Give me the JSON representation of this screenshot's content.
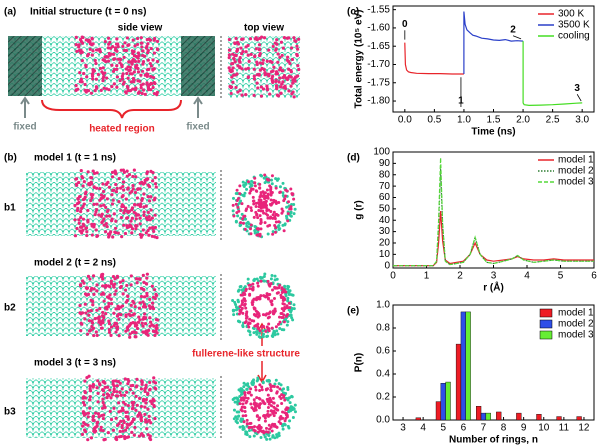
{
  "panels": {
    "a_label": "(a)",
    "a_title": "Initial structure (t = 0 ns)",
    "side_view": "side view",
    "top_view": "top view",
    "fixed_left": "fixed",
    "heated": "heated region",
    "fixed_right": "fixed",
    "b_label": "(b)",
    "model1": "model 1 (t = 1 ns)",
    "b1": "b1",
    "model2": "model 2 (t = 2 ns)",
    "b2": "b2",
    "fullerene": "fullerene-like structure",
    "model3": "model 3 (t = 3 ns)",
    "b3": "b3"
  },
  "chart_data": [
    {
      "type": "line",
      "panel": "(c)",
      "xlabel": "Time (ns)",
      "ylabel": "Total energy (10⁵ eV)",
      "xlim": [
        -0.2,
        3.2
      ],
      "xticks": [
        {
          "value": 0,
          "label": "0.0"
        },
        0.5,
        {
          "value": 1,
          "label": "1.0"
        },
        1.5,
        {
          "value": 2,
          "label": "2.0"
        },
        2.5,
        {
          "value": 3,
          "label": "3.0"
        }
      ],
      "ylim": [
        -1.83,
        -1.54
      ],
      "yticks": [
        -1.55,
        {
          "value": -1.6,
          "label": "-1.60"
        },
        -1.65,
        {
          "value": -1.7,
          "label": "-1.70"
        },
        -1.75,
        {
          "value": -1.8,
          "label": "-1.80"
        }
      ],
      "legend": "upper right",
      "annotations": [
        "0",
        "1",
        "2",
        "3"
      ],
      "series": [
        {
          "name": "300 K",
          "color": "#e8242a",
          "x": [
            0,
            0.01,
            0.03,
            0.06,
            0.1,
            0.2,
            0.4,
            0.6,
            0.8,
            1.0
          ],
          "values": [
            -1.64,
            -1.7,
            -1.715,
            -1.72,
            -1.722,
            -1.724,
            -1.725,
            -1.725,
            -1.726,
            -1.726
          ]
        },
        {
          "name": "3500 K",
          "color": "#2a3fc9",
          "x": [
            1.0,
            1.0,
            1.02,
            1.05,
            1.1,
            1.15,
            1.2,
            1.3,
            1.4,
            1.5,
            1.6,
            1.7,
            1.8,
            1.9,
            2.0
          ],
          "values": [
            -1.726,
            -1.555,
            -1.59,
            -1.605,
            -1.613,
            -1.62,
            -1.622,
            -1.628,
            -1.63,
            -1.633,
            -1.634,
            -1.632,
            -1.636,
            -1.635,
            -1.636
          ]
        },
        {
          "name": "cooling",
          "color": "#44dd22",
          "x": [
            2.0,
            2.0,
            2.02,
            2.1,
            2.3,
            2.5,
            2.7,
            2.9,
            3.0
          ],
          "values": [
            -1.636,
            -1.805,
            -1.81,
            -1.812,
            -1.811,
            -1.81,
            -1.808,
            -1.806,
            -1.805
          ]
        }
      ]
    },
    {
      "type": "line",
      "panel": "(d)",
      "xlabel": "r (Å)",
      "ylabel": "g (r)",
      "xlim": [
        0,
        6
      ],
      "xticks": [
        0,
        1,
        2,
        3,
        4,
        5,
        6
      ],
      "ylim": [
        -2,
        100
      ],
      "yticks": [
        0,
        10,
        20,
        30,
        40,
        50,
        60,
        70,
        80,
        90,
        100
      ],
      "legend": "upper right",
      "series": [
        {
          "name": "model 1",
          "color": "#e8242a",
          "dash": "solid",
          "x": [
            0,
            1.2,
            1.3,
            1.36,
            1.42,
            1.48,
            1.56,
            1.7,
            1.9,
            2.1,
            2.3,
            2.45,
            2.6,
            2.8,
            3.0,
            3.3,
            3.55,
            3.72,
            3.9,
            4.2,
            4.5,
            4.8,
            5.1,
            5.5,
            6.0
          ],
          "values": [
            0,
            0,
            3,
            20,
            48,
            22,
            5,
            2,
            3,
            4,
            10,
            20,
            10,
            5,
            4,
            5,
            6,
            8,
            6,
            5,
            5,
            6,
            5,
            5,
            5
          ]
        },
        {
          "name": "model 2",
          "color": "#2e7d32",
          "dash": "dotted",
          "x": [
            0,
            1.2,
            1.3,
            1.36,
            1.42,
            1.48,
            1.56,
            1.7,
            1.9,
            2.1,
            2.3,
            2.45,
            2.6,
            2.8,
            3.0,
            3.3,
            3.55,
            3.72,
            3.9,
            4.2,
            4.5,
            4.8,
            5.1,
            5.5,
            6.0
          ],
          "values": [
            0,
            0,
            4,
            35,
            85,
            35,
            4,
            1,
            2,
            3,
            10,
            25,
            10,
            3,
            2,
            4,
            6,
            9,
            5,
            3,
            4,
            5,
            4,
            4,
            4
          ]
        },
        {
          "name": "model 3",
          "color": "#55d83a",
          "dash": "dashed",
          "x": [
            0,
            1.2,
            1.3,
            1.36,
            1.42,
            1.48,
            1.56,
            1.7,
            1.9,
            2.1,
            2.3,
            2.45,
            2.6,
            2.8,
            3.0,
            3.3,
            3.55,
            3.72,
            3.9,
            4.2,
            4.5,
            4.8,
            5.1,
            5.5,
            6.0
          ],
          "values": [
            0,
            0,
            4,
            40,
            95,
            38,
            4,
            1,
            2,
            3,
            10,
            25,
            10,
            3,
            2,
            4,
            6,
            9,
            5,
            3,
            4,
            5,
            4,
            4,
            4
          ]
        }
      ]
    },
    {
      "type": "bar",
      "panel": "(e)",
      "xlabel": "Number of rings, n",
      "ylabel": "P(n)",
      "categories": [
        "3",
        "4",
        "5",
        "6",
        "7",
        "8",
        "9",
        "10",
        "11",
        "12"
      ],
      "ylim": [
        0,
        1.0
      ],
      "yticks": [
        {
          "value": 0,
          "label": "0.0"
        },
        0.2,
        0.4,
        0.6,
        0.8,
        {
          "value": 1,
          "label": "1.0"
        }
      ],
      "legend": "upper right",
      "series": [
        {
          "name": "model 1",
          "color": "#ee1c24",
          "values": [
            0,
            0.02,
            0.16,
            0.66,
            0.12,
            0.07,
            0.06,
            0.05,
            0.03,
            0.03
          ]
        },
        {
          "name": "model 2",
          "color": "#2f4fe8",
          "values": [
            0,
            0,
            0.32,
            0.94,
            0.06,
            0,
            0,
            0,
            0,
            0
          ]
        },
        {
          "name": "model 3",
          "color": "#66ee33",
          "values": [
            0,
            0,
            0.33,
            0.94,
            0.06,
            0,
            0,
            0,
            0,
            0
          ]
        }
      ]
    }
  ]
}
